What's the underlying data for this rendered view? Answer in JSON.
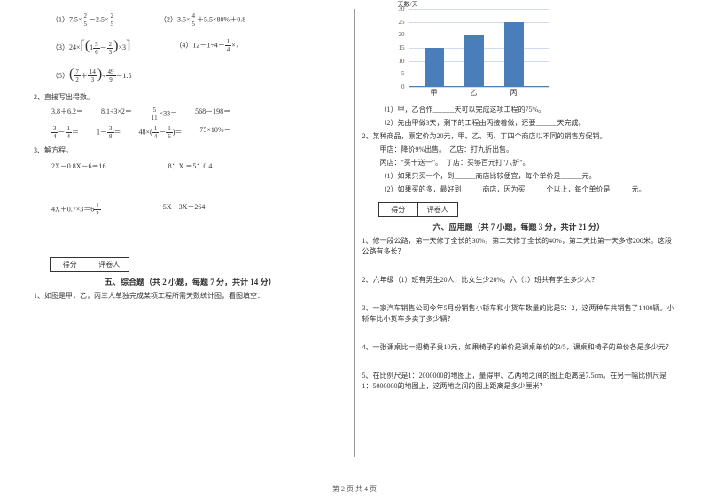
{
  "left": {
    "eq1_a": "（1）7.5×",
    "eq1_b": "－2.5×",
    "eq2_a": "（2）",
    "eq2_b": "3.5×",
    "eq2_c": "＋5.5×80%＋0.8",
    "eq3_a": "（3）",
    "eq3_b": "24×",
    "eq4": "（4）12－1÷4－",
    "eq4b": "×7",
    "eq5_a": "（5）",
    "eq5_b": "－1.5",
    "q2": "2、直接写出得数。",
    "q2r1a": "3.8＋6.2＝",
    "q2r1b": "8.1÷3×2＝",
    "q2r1c": "×33＝",
    "q2r1d": "568－198＝",
    "q2r2a": "＝",
    "q2r2b": "1－",
    "q2r2c": "＝",
    "q2r2d": "48×(",
    "q2r2e": ")＝",
    "q2r2f": "75×10%＝",
    "q3": "3、解方程。",
    "q3r1a": "2X－0.8X－6＝16",
    "q3r1b": "8：X ＝5：0.4",
    "q3r2a": "4X＋0.7×3＝6",
    "q3r2b": "5X＋3X＝264",
    "score1": "得分",
    "score2": "评卷人",
    "sec5": "五、综合题（共 2 小题，每题 7 分，共计 14 分）",
    "q5_1": "1、如图是甲，乙，丙三人单独完成某项工程所需天数统计图，看图填空：",
    "frac25n": "2",
    "frac25d": "5",
    "frac45n": "4",
    "frac45d": "5",
    "frac156n": "5",
    "frac156d": "6",
    "frac23n": "2",
    "frac23d": "3",
    "frac14n": "1",
    "frac14d": "4",
    "frac72n": "7",
    "frac72d": "2",
    "frac143n": "14",
    "frac143d": "3",
    "frac499n": "49",
    "frac499d": "9",
    "frac511n": "5",
    "frac511d": "11",
    "frac34n": "3",
    "frac34d": "4",
    "frac38n": "3",
    "frac38d": "8",
    "frac16n": "1",
    "frac16d": "6",
    "frac12n": "1",
    "frac12d": "2"
  },
  "right": {
    "chart": {
      "ylabel": "天数/天",
      "yticks": [
        "0",
        "5",
        "10",
        "15",
        "20",
        "25",
        "30"
      ],
      "categories": [
        "甲",
        "乙",
        "丙"
      ],
      "values": [
        15,
        20,
        25
      ],
      "ymax": 30,
      "bar_color": "#4a7ebb",
      "grid_color": "#cde"
    },
    "c1": "（1）甲，乙合作______天可以完成这项工程的75%。",
    "c2": "（2）先由甲做3天，剩下的工程由丙接着做，还要______天完成。",
    "q2": "2、某种商品，原定价为20元，甲、乙、丙、丁四个商店以不同的销售方促销。",
    "q2a": "甲店：降价9%出售。　乙店：打九折出售。",
    "q2b": "丙店：\"买十送一\"。　丁店：买够百元打\"八折\"。",
    "q2c": "（1）如果只买一个，到______商店比较便宜，每个单价是______元。",
    "q2d": "（2）如果买的多，最好到______商店，因为买______个以上，每个单价是______元。",
    "score1": "得分",
    "score2": "评卷人",
    "sec6": "六、应用题（共 7 小题，每题 3 分，共计 21 分）",
    "a1": "1、修一段公路，第一天修了全长的30%，第二天修了全长的40%，第二天比第一天多修200米。这段公路有多长？",
    "a2": "2、六年级（1）班有男生20人，比女生少20%。六（1）班共有学生多少人？",
    "a3": "3、一家汽车销售公司今年5月份销售小轿车和小货车数量的比是5：2，这两种车共销售了1400辆。小轿车比小货车多卖了多少辆？",
    "a4": "4、一张课桌比一把椅子贵10元，如果椅子的单价是课桌单价的3/5，课桌和椅子的单价各是多少元？",
    "a5": "5、在比例尺是1：2000000的地图上，量得甲、乙两地之间的图上距离是7.5cm。在另一幅比例尺是1：5000000的地图上，这两地之间的图上距离是多少厘米？"
  },
  "footer": "第 2 页 共 4 页"
}
